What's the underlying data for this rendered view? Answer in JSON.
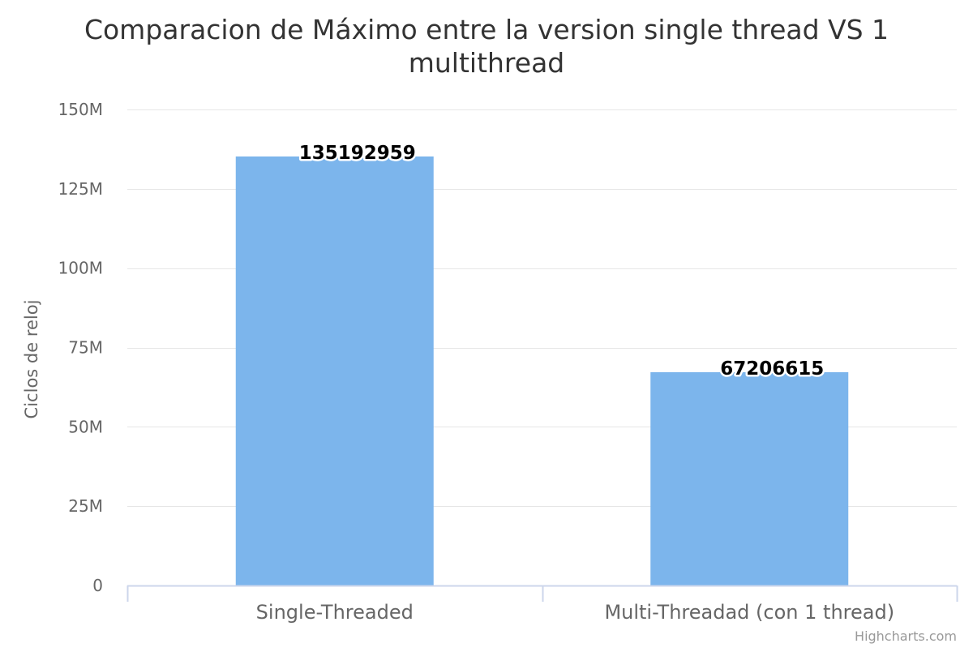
{
  "chart_data": {
    "type": "bar",
    "title_line1": "Comparacion de Máximo entre la version single thread VS 1",
    "title_line2": "multithread",
    "categories": [
      "Single-Threaded",
      "Multi-Threadad (con 1 thread)"
    ],
    "series": [
      {
        "values": [
          135192959,
          67206615
        ],
        "color": "#7cb5ec"
      }
    ],
    "data_labels": [
      "135192959",
      "67206615"
    ],
    "xlabel": "",
    "ylabel": "Ciclos de reloj",
    "ylim": [
      0,
      150000000
    ],
    "y_ticks": [
      0,
      25000000,
      50000000,
      75000000,
      100000000,
      125000000,
      150000000
    ],
    "y_tick_labels": [
      "0",
      "25M",
      "50M",
      "75M",
      "100M",
      "125M",
      "150M"
    ],
    "grid": true,
    "legend": "none",
    "credits": "Highcharts.com",
    "colors": {
      "bar": "#7cb5ec",
      "grid": "#e6e6e6",
      "axis": "#ccd6eb",
      "title": "#333333",
      "label": "#666666",
      "credits": "#999999"
    }
  }
}
